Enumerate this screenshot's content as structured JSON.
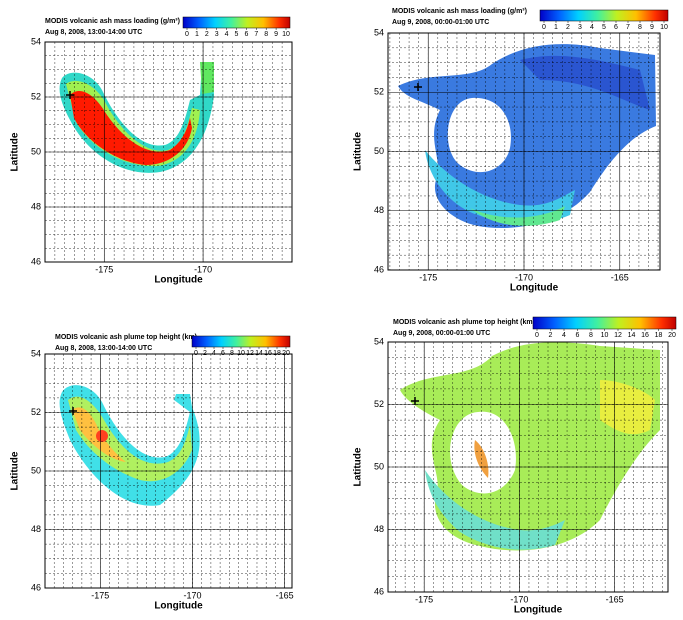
{
  "panels": [
    {
      "title": "MODIS volcanic ash mass loading (g/m³)",
      "subtitle": "Aug 8, 2008, 13:00-14:00 UTC",
      "colorbar_ticks": [
        0,
        1,
        2,
        3,
        4,
        5,
        6,
        7,
        8,
        9,
        10
      ],
      "xlabel": "Longitude",
      "ylabel": "Latitude",
      "xlim": [
        -178,
        -165.5
      ],
      "ylim": [
        46,
        54
      ],
      "xticks": [
        -175,
        -170
      ],
      "yticks": [
        46,
        48,
        50,
        52,
        54
      ]
    },
    {
      "title": "MODIS volcanic ash mass loading (g/m³)",
      "subtitle": "Aug 9, 2008, 00:00-01:00 UTC",
      "colorbar_ticks": [
        0,
        1,
        2,
        3,
        4,
        5,
        6,
        7,
        8,
        9,
        10
      ],
      "xlabel": "Longitude",
      "ylabel": "Latitude",
      "xlim": [
        -177.1,
        -162.9
      ],
      "ylim": [
        46,
        54
      ],
      "xticks": [
        -175,
        -170,
        -165
      ],
      "yticks": [
        46,
        48,
        50,
        52,
        54
      ]
    },
    {
      "title": "MODIS volcanic ash plume top height (km)",
      "subtitle": "Aug 8, 2008, 13:00-14:00 UTC",
      "colorbar_ticks": [
        0,
        2,
        4,
        6,
        8,
        10,
        12,
        14,
        16,
        18,
        20
      ],
      "xlabel": "Longitude",
      "ylabel": "Latitude",
      "xlim": [
        -178,
        -164.6
      ],
      "ylim": [
        46,
        54
      ],
      "xticks": [
        -175,
        -170,
        -165
      ],
      "yticks": [
        46,
        48,
        50,
        52,
        54
      ]
    },
    {
      "title": "MODIS volcanic ash plume top height (km)",
      "subtitle": "Aug 9, 2008, 00:00-01:00 UTC",
      "colorbar_ticks": [
        0,
        2,
        4,
        6,
        8,
        10,
        12,
        14,
        16,
        18,
        20
      ],
      "xlabel": "Longitude",
      "ylabel": "Latitude",
      "xlim": [
        -176.9,
        -162.2
      ],
      "ylim": [
        46,
        54
      ],
      "xticks": [
        -175,
        -170,
        -165
      ],
      "yticks": [
        46,
        48,
        50,
        52,
        54
      ]
    }
  ]
}
